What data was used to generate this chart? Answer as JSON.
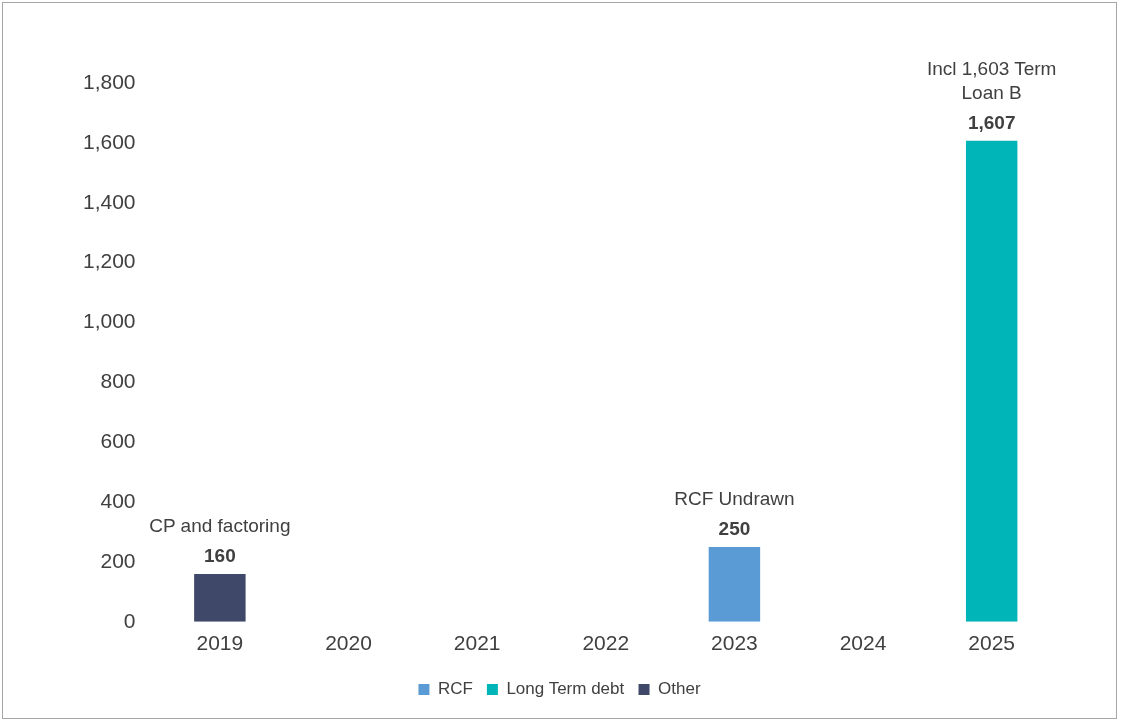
{
  "chart_data": {
    "type": "bar",
    "categories": [
      "2019",
      "2020",
      "2021",
      "2022",
      "2023",
      "2024",
      "2025"
    ],
    "series": [
      {
        "name": "RCF",
        "color": "#5b9bd5",
        "values": [
          null,
          null,
          null,
          null,
          250,
          null,
          null
        ],
        "value_labels": [
          null,
          null,
          null,
          null,
          "250",
          null,
          null
        ]
      },
      {
        "name": "Long Term debt",
        "color": "#00b5b8",
        "values": [
          null,
          null,
          null,
          null,
          null,
          null,
          1607
        ],
        "value_labels": [
          null,
          null,
          null,
          null,
          null,
          null,
          "1,607"
        ]
      },
      {
        "name": "Other",
        "color": "#3f4868",
        "values": [
          160,
          null,
          null,
          null,
          null,
          null,
          null
        ],
        "value_labels": [
          "160",
          null,
          null,
          null,
          null,
          null,
          null
        ]
      }
    ],
    "ylim": [
      0,
      1800
    ],
    "yticks": [
      0,
      200,
      400,
      600,
      800,
      {
        "value": 1000,
        "label": "1,000"
      },
      {
        "value": 1200,
        "label": "1,200"
      },
      {
        "value": 1400,
        "label": "1,400"
      },
      {
        "value": 1600,
        "label": "1,600"
      },
      {
        "value": 1800,
        "label": "1,800"
      }
    ],
    "grid": false,
    "legend": "bottom",
    "annotations": [
      {
        "text": "CP and factoring",
        "x": "2019",
        "y": 160
      },
      {
        "text": "RCF Undrawn",
        "x": "2023",
        "y": 250
      },
      {
        "text": "Incl 1,603 Term Loan B",
        "x": "2025",
        "y": 1607
      }
    ]
  }
}
